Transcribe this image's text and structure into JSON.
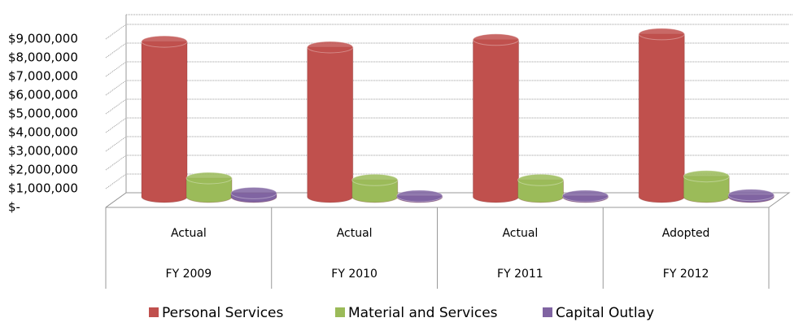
{
  "chart_data": {
    "type": "bar3d",
    "categories": [
      "Actual",
      "Actual",
      "Actual",
      "Adopted"
    ],
    "subcategories": [
      "FY 2009",
      "FY 2010",
      "FY 2011",
      "FY 2012"
    ],
    "series": [
      {
        "name": "Personal Services",
        "color": "#c0504d",
        "values": [
          8300000,
          8000000,
          8400000,
          8700000
        ]
      },
      {
        "name": "Material and Services",
        "color": "#9bbb59",
        "values": [
          1000000,
          900000,
          900000,
          1100000
        ]
      },
      {
        "name": "Capital Outlay",
        "color": "#8064a2",
        "values": [
          200000,
          50000,
          50000,
          100000
        ]
      }
    ],
    "ylim": [
      0,
      9000000
    ],
    "yticks": [
      {
        "value": 0,
        "label": "$-"
      },
      {
        "value": 1000000,
        "label": "$1,000,000"
      },
      {
        "value": 2000000,
        "label": "$2,000,000"
      },
      {
        "value": 3000000,
        "label": "$3,000,000"
      },
      {
        "value": 4000000,
        "label": "$4,000,000"
      },
      {
        "value": 5000000,
        "label": "$5,000,000"
      },
      {
        "value": 6000000,
        "label": "$6,000,000"
      },
      {
        "value": 7000000,
        "label": "$7,000,000"
      },
      {
        "value": 8000000,
        "label": "$8,000,000"
      },
      {
        "value": 9000000,
        "label": "$9,000,000"
      }
    ],
    "grid": true,
    "legend": "bottom"
  }
}
